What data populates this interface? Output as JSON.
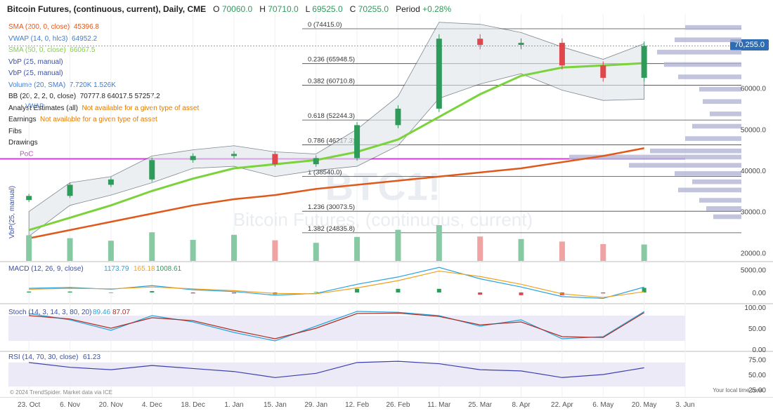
{
  "header": {
    "title": "Bitcoin Futures, (continuous, current), Daily, CME",
    "open_label": "O",
    "open": "70060.0",
    "high_label": "H",
    "high": "70710.0",
    "low_label": "L",
    "low": "69525.0",
    "close_label": "C",
    "close": "70255.0",
    "period_label": "Period",
    "period": "+0.28%"
  },
  "price_badge": "70,255.0",
  "indicators": [
    {
      "label": "SMA (200, 0, close)",
      "values": "45396.8",
      "color": "#e0581a"
    },
    {
      "label": "VWAP (14, 0, hlc3)",
      "values": "64952.2",
      "color": "#3b7dd8"
    },
    {
      "label": "SMA (50, 0, close)",
      "values": "66067.5",
      "color": "#7ad33a"
    },
    {
      "label": "VbP (25, manual)",
      "values": "",
      "color": "#3b4fa8"
    },
    {
      "label": "VbP (25, manual)",
      "values": "",
      "color": "#3b4fa8"
    },
    {
      "label": "Volume (20, SMA)",
      "values": "7.720K 1.526K",
      "color": "#3b7dd8"
    },
    {
      "label": "BB (20, 2, 2, 0, close)",
      "values": "70777.8 64017.5 57257.2",
      "color": "#222"
    },
    {
      "label": "Analyst Estimates (all)",
      "values": "Not available for a given type of asset",
      "color": "#222",
      "value_color": "#e07b00"
    },
    {
      "label": "Earnings",
      "values": "Not available for a given type of asset",
      "color": "#222",
      "value_color": "#e07b00"
    },
    {
      "label": "Fibs",
      "values": "",
      "color": "#222"
    },
    {
      "label": "Drawings",
      "values": "",
      "color": "#222"
    }
  ],
  "poc_label": "PoC",
  "vwap_tag": "VWAP",
  "watermark_symbol": "BTC1!",
  "watermark_name": "Bitcoin Futures, (continuous, current)",
  "vbp_side_label": "VbP(25, manual)",
  "fib_levels": [
    {
      "ratio": "0",
      "price": 74415.0
    },
    {
      "ratio": "0.236",
      "price": 65948.5
    },
    {
      "ratio": "0.382",
      "price": 60710.8
    },
    {
      "ratio": "0.618",
      "price": 52244.3
    },
    {
      "ratio": "0.786",
      "price": 46217.3
    },
    {
      "ratio": "1",
      "price": 38540.0
    },
    {
      "ratio": "1.236",
      "price": 30073.5
    },
    {
      "ratio": "1.382",
      "price": 24835.8
    }
  ],
  "macd_legend": {
    "label": "MACD (12, 26, 9, close)",
    "v1": "1173.79",
    "v2": "165.18",
    "v3": "1008.61"
  },
  "stoch_legend": {
    "label": "Stoch (14, 3, 14, 3, 80, 20)",
    "v1": "89.46",
    "v2": "87.07"
  },
  "rsi_legend": {
    "label": "RSI (14, 70, 30, close)",
    "v1": "61.23"
  },
  "footer_left": "© 2024 TrendSpider. Market data via ICE",
  "footer_right": "Your local time zone",
  "price_axis": [
    "60000.0",
    "50000.0",
    "40000.0",
    "30000.0",
    "20000.0"
  ],
  "macd_axis": [
    "5000.00",
    "0.00"
  ],
  "stoch_axis": [
    "100.00",
    "50.00",
    "0.00"
  ],
  "rsi_axis": [
    "75.00",
    "50.00",
    "25.00"
  ],
  "x_axis": [
    "23. Oct",
    "6. Nov",
    "20. Nov",
    "4. Dec",
    "18. Dec",
    "1. Jan",
    "15. Jan",
    "29. Jan",
    "12. Feb",
    "26. Feb",
    "11. Mar",
    "25. Mar",
    "8. Apr",
    "22. Apr",
    "6. May",
    "20. May",
    "3. Jun"
  ],
  "chart_data": {
    "type": "candlestick",
    "ylim": [
      18000,
      78000
    ],
    "dates": [
      "2023-10-23",
      "2023-11-06",
      "2023-11-20",
      "2023-12-04",
      "2023-12-18",
      "2024-01-01",
      "2024-01-15",
      "2024-01-29",
      "2024-02-12",
      "2024-02-26",
      "2024-03-11",
      "2024-03-25",
      "2024-04-08",
      "2024-04-22",
      "2024-05-06",
      "2024-05-20"
    ],
    "close": [
      33800,
      36500,
      37800,
      42500,
      43500,
      44000,
      41500,
      43000,
      51000,
      55000,
      72000,
      70500,
      71000,
      65500,
      62500,
      70255
    ],
    "sma200": [
      23500,
      25500,
      27500,
      29500,
      31500,
      33000,
      34000,
      35500,
      36500,
      37500,
      38500,
      39500,
      40500,
      42000,
      43500,
      45396.8
    ],
    "sma50": [
      25500,
      28500,
      31500,
      35000,
      38000,
      40500,
      41500,
      42500,
      44500,
      47500,
      53000,
      58500,
      63000,
      65000,
      65500,
      66067.5
    ],
    "volume_k": [
      6.1,
      5.4,
      4.8,
      6.8,
      5.0,
      6.2,
      4.9,
      4.3,
      5.7,
      7.4,
      8.5,
      5.8,
      5.2,
      4.6,
      4.0,
      3.9
    ],
    "macd": [
      900,
      1100,
      700,
      1500,
      600,
      200,
      -600,
      -200,
      1800,
      3400,
      5500,
      3000,
      1200,
      -900,
      -1300,
      1173.79
    ],
    "macd_signal": [
      700,
      900,
      800,
      1200,
      800,
      400,
      -200,
      -300,
      1000,
      2600,
      4700,
      3500,
      1800,
      -300,
      -1100,
      165.18
    ],
    "stoch_k": [
      85,
      70,
      45,
      80,
      65,
      40,
      20,
      55,
      90,
      88,
      80,
      55,
      70,
      25,
      30,
      89.46
    ],
    "stoch_d": [
      80,
      72,
      50,
      75,
      68,
      45,
      25,
      50,
      85,
      86,
      78,
      58,
      65,
      30,
      28,
      87.07
    ],
    "rsi": [
      70,
      62,
      58,
      65,
      60,
      55,
      45,
      52,
      70,
      72,
      68,
      58,
      56,
      45,
      50,
      61.23
    ]
  }
}
